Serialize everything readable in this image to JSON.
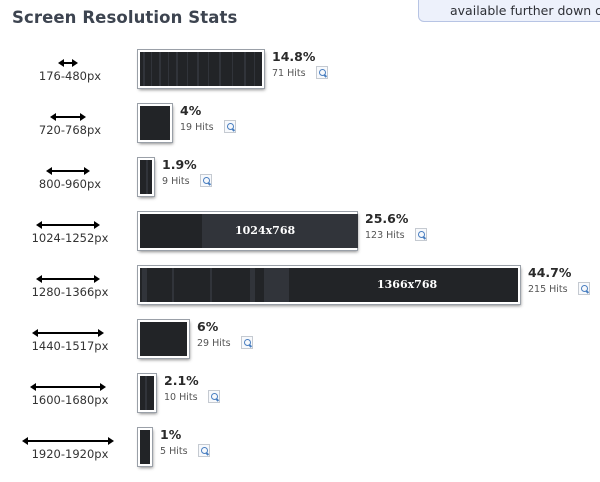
{
  "page": {
    "title": "Screen Resolution Stats"
  },
  "notice": {
    "text": "available further down on"
  },
  "colors": {
    "bar": "#222427",
    "stripe": "#31343a",
    "border": "#ffffff"
  },
  "chart_data": {
    "type": "bar",
    "title": "Screen Resolution Stats",
    "categories": [
      "176-480px",
      "720-768px",
      "800-960px",
      "1024-1252px",
      "1280-1366px",
      "1440-1517px",
      "1600-1680px",
      "1920-1920px"
    ],
    "series": [
      {
        "values": [
          14.8,
          4,
          1.9,
          25.6,
          44.7,
          6,
          2.1,
          1
        ]
      }
    ],
    "rows": [
      {
        "range": "176-480px",
        "percent": "14.8%",
        "hits": "71 Hits",
        "share": 14.8,
        "bar_label": ""
      },
      {
        "range": "720-768px",
        "percent": "4%",
        "hits": "19 Hits",
        "share": 4,
        "bar_label": ""
      },
      {
        "range": "800-960px",
        "percent": "1.9%",
        "hits": "9 Hits",
        "share": 1.9,
        "bar_label": ""
      },
      {
        "range": "1024-1252px",
        "percent": "25.6%",
        "hits": "123 Hits",
        "share": 25.6,
        "bar_label": "1024x768"
      },
      {
        "range": "1280-1366px",
        "percent": "44.7%",
        "hits": "215 Hits",
        "share": 44.7,
        "bar_label": "1366x768"
      },
      {
        "range": "1440-1517px",
        "percent": "6%",
        "hits": "29 Hits",
        "share": 6,
        "bar_label": ""
      },
      {
        "range": "1600-1680px",
        "percent": "2.1%",
        "hits": "10 Hits",
        "share": 2.1,
        "bar_label": ""
      },
      {
        "range": "1920-1920px",
        "percent": "1%",
        "hits": "5 Hits",
        "share": 1,
        "bar_label": ""
      }
    ]
  }
}
